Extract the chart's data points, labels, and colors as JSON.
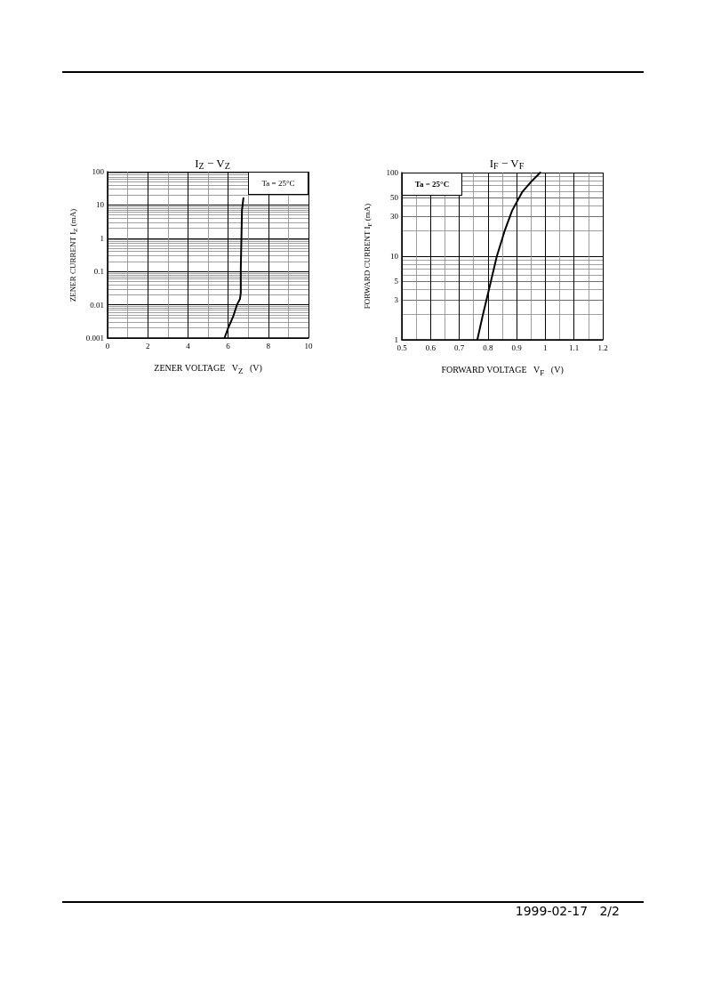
{
  "chart_data": [
    {
      "type": "line",
      "title": "I$_{Z}$ − V$_{Z}$",
      "xlabel": "ZENER VOLTAGE   V$_{Z}$   (V)",
      "ylabel": "ZENER CURRENT   I$_{Z}$   (mA)",
      "series": [
        {
          "color": "#000000",
          "x": [
            5.82,
            6.0,
            6.25,
            6.44,
            6.59,
            6.63,
            6.63,
            6.66,
            6.69,
            6.76
          ],
          "values": [
            0.001,
            0.002,
            0.0044,
            0.01,
            0.015,
            0.023,
            0.12,
            0.9,
            7,
            16
          ]
        }
      ],
      "xlim": [
        0,
        10
      ],
      "xticks": [
        0,
        2,
        4,
        6,
        8,
        10
      ],
      "ylim": [
        0.001,
        100
      ],
      "yticks": [
        0.001,
        0.01,
        0.1,
        1,
        10,
        100
      ],
      "log": "y",
      "grid": true,
      "marker": "none",
      "line_style": "solid",
      "annotations": [
        "Ta = 25°C"
      ]
    },
    {
      "type": "line",
      "title": "I$_{F}$ − V$_{F}$",
      "xlabel": "FORWARD VOLTAGE   V$_{F}$   (V)",
      "ylabel": "FORWARD CURRENT   I$_{F}$   (mA)",
      "series": [
        {
          "color": "#000000",
          "x": [
            0.763,
            0.781,
            0.802,
            0.831,
            0.858,
            0.884,
            0.92,
            0.951,
            0.982
          ],
          "values": [
            1,
            1.9,
            3.8,
            10,
            20,
            35,
            59,
            78,
            100
          ]
        }
      ],
      "xlim": [
        0.5,
        1.2
      ],
      "xticks": [
        0.5,
        0.6,
        0.7,
        0.8,
        0.9,
        1,
        1.1,
        1.2
      ],
      "ylim": [
        1,
        100
      ],
      "yticks": [
        1,
        3,
        5,
        10,
        30,
        50,
        100
      ],
      "log": "y",
      "grid": true,
      "marker": "none",
      "line_style": "solid",
      "annotations": [
        "Ta = 25°C",
        "1999-02-17   2/2"
      ]
    }
  ]
}
